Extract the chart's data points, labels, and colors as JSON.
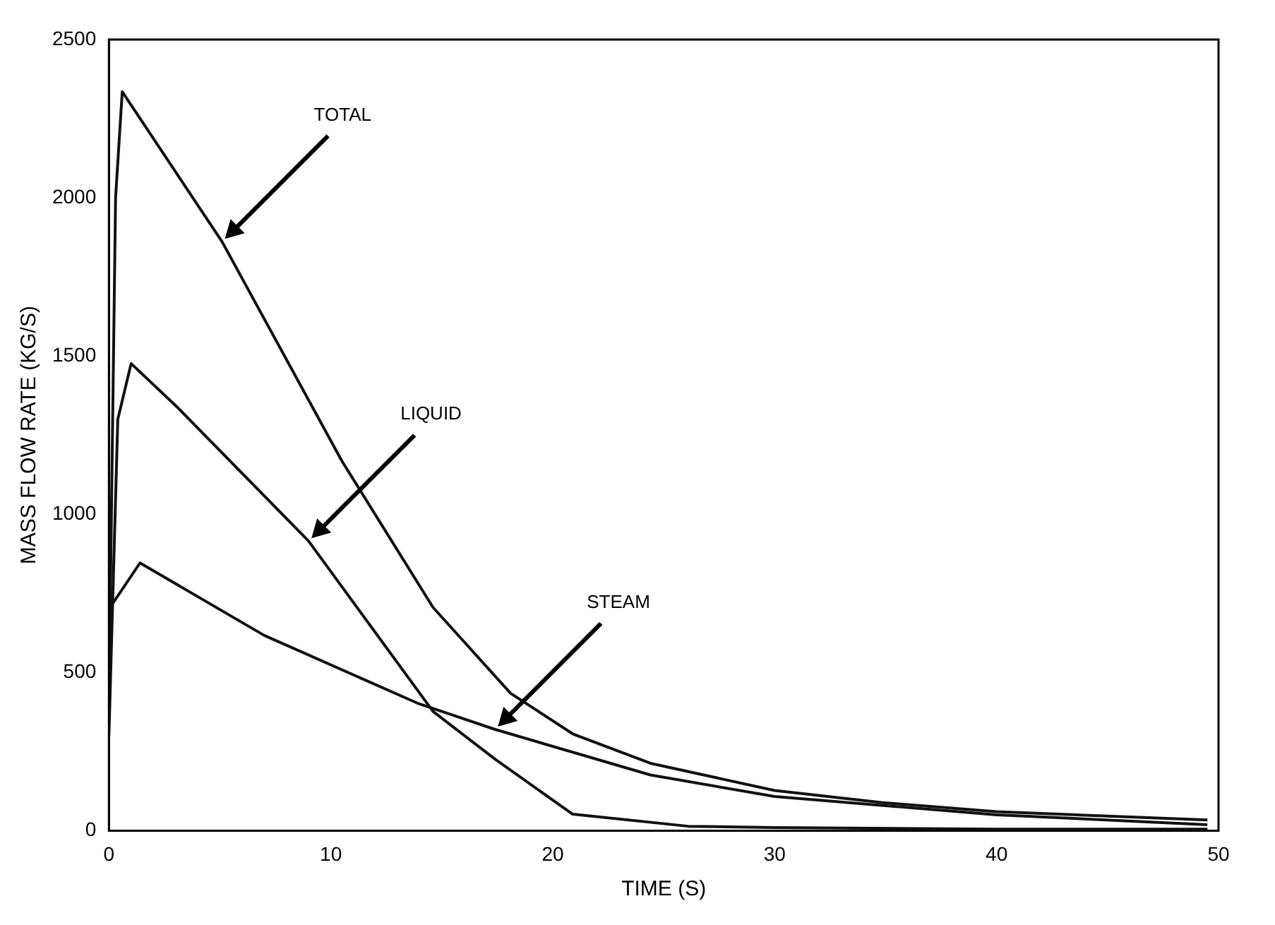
{
  "chart_data": {
    "type": "line",
    "xlabel": "TIME (S)",
    "ylabel": "MASS FLOW RATE (KG/S)",
    "xlim": [
      0,
      50
    ],
    "xticks": [
      0,
      10,
      20,
      30,
      40,
      50
    ],
    "ylim": [
      0,
      2500
    ],
    "yticks": [
      0,
      500,
      1000,
      1500,
      2000,
      2500
    ],
    "grid": false,
    "legend": false,
    "marker": "none",
    "line_style": "solid",
    "series": [
      {
        "color": "#111111",
        "x": [
          0,
          0.3,
          0.6,
          5.1,
          10.5,
          14.6,
          18.1,
          20.9,
          24.4,
          30,
          34.8,
          40,
          49.5
        ],
        "values": [
          400,
          2000,
          2335,
          1861,
          1168,
          706,
          434,
          306,
          213,
          127,
          89,
          60,
          34
        ]
      },
      {
        "color": "#111111",
        "x": [
          0,
          0.4,
          1.0,
          3.1,
          9,
          14.6,
          17.4,
          20.9,
          26.1,
          30,
          40,
          49.5
        ],
        "values": [
          300,
          1300,
          1476,
          1337,
          915,
          377,
          226,
          52,
          14,
          10,
          5,
          5
        ]
      },
      {
        "color": "#111111",
        "x": [
          0,
          1.4,
          7,
          13.9,
          17.4,
          24.4,
          30,
          40,
          49.5
        ],
        "values": [
          700,
          846,
          617,
          403,
          320,
          176,
          108,
          50,
          19
        ]
      }
    ],
    "annotations": [
      {
        "text": "TOTAL",
        "x": 5.1,
        "y": 1861
      },
      {
        "text": "LIQUID",
        "x": 9,
        "y": 915
      },
      {
        "text": "STEAM",
        "x": 17.4,
        "y": 320
      }
    ]
  }
}
